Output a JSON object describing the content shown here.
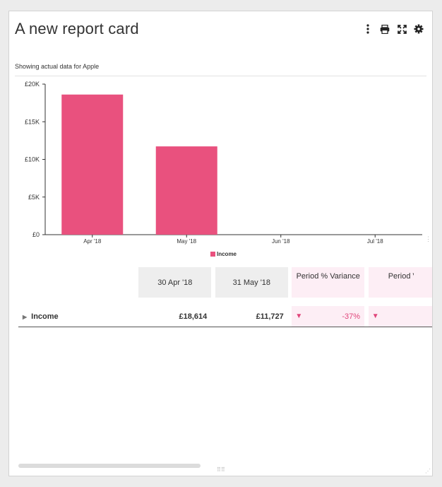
{
  "card": {
    "title": "A new report card",
    "subtitle": "Showing actual data for Apple"
  },
  "toolbar": {
    "menu_icon": "more-vertical-icon",
    "print_icon": "print-icon",
    "expand_icon": "expand-icon",
    "settings_icon": "gear-icon"
  },
  "chart_data": {
    "type": "bar",
    "categories": [
      "Apr '18",
      "May '18",
      "Jun '18",
      "Jul '18"
    ],
    "series": [
      {
        "name": "Income",
        "values": [
          18614,
          11727,
          0,
          0
        ]
      }
    ],
    "yticks": [
      "£0",
      "£5K",
      "£10K",
      "£15K",
      "£20K"
    ],
    "ytick_values": [
      0,
      5000,
      10000,
      15000,
      20000
    ],
    "ylim": [
      0,
      20000
    ],
    "bar_color": "#e9517e",
    "legend_position": "bottom-center",
    "grid": false
  },
  "table": {
    "columns": [
      "30 Apr '18",
      "31 May '18",
      "Period % Variance",
      "Period V"
    ],
    "rows": [
      {
        "label": "Income",
        "apr": "£18,614",
        "may": "£11,727",
        "variance": "-37%",
        "variance2": ""
      }
    ]
  },
  "colors": {
    "accent": "#e9517e",
    "variance_bg": "#fdeef5",
    "header_bg": "#eeeeee"
  }
}
